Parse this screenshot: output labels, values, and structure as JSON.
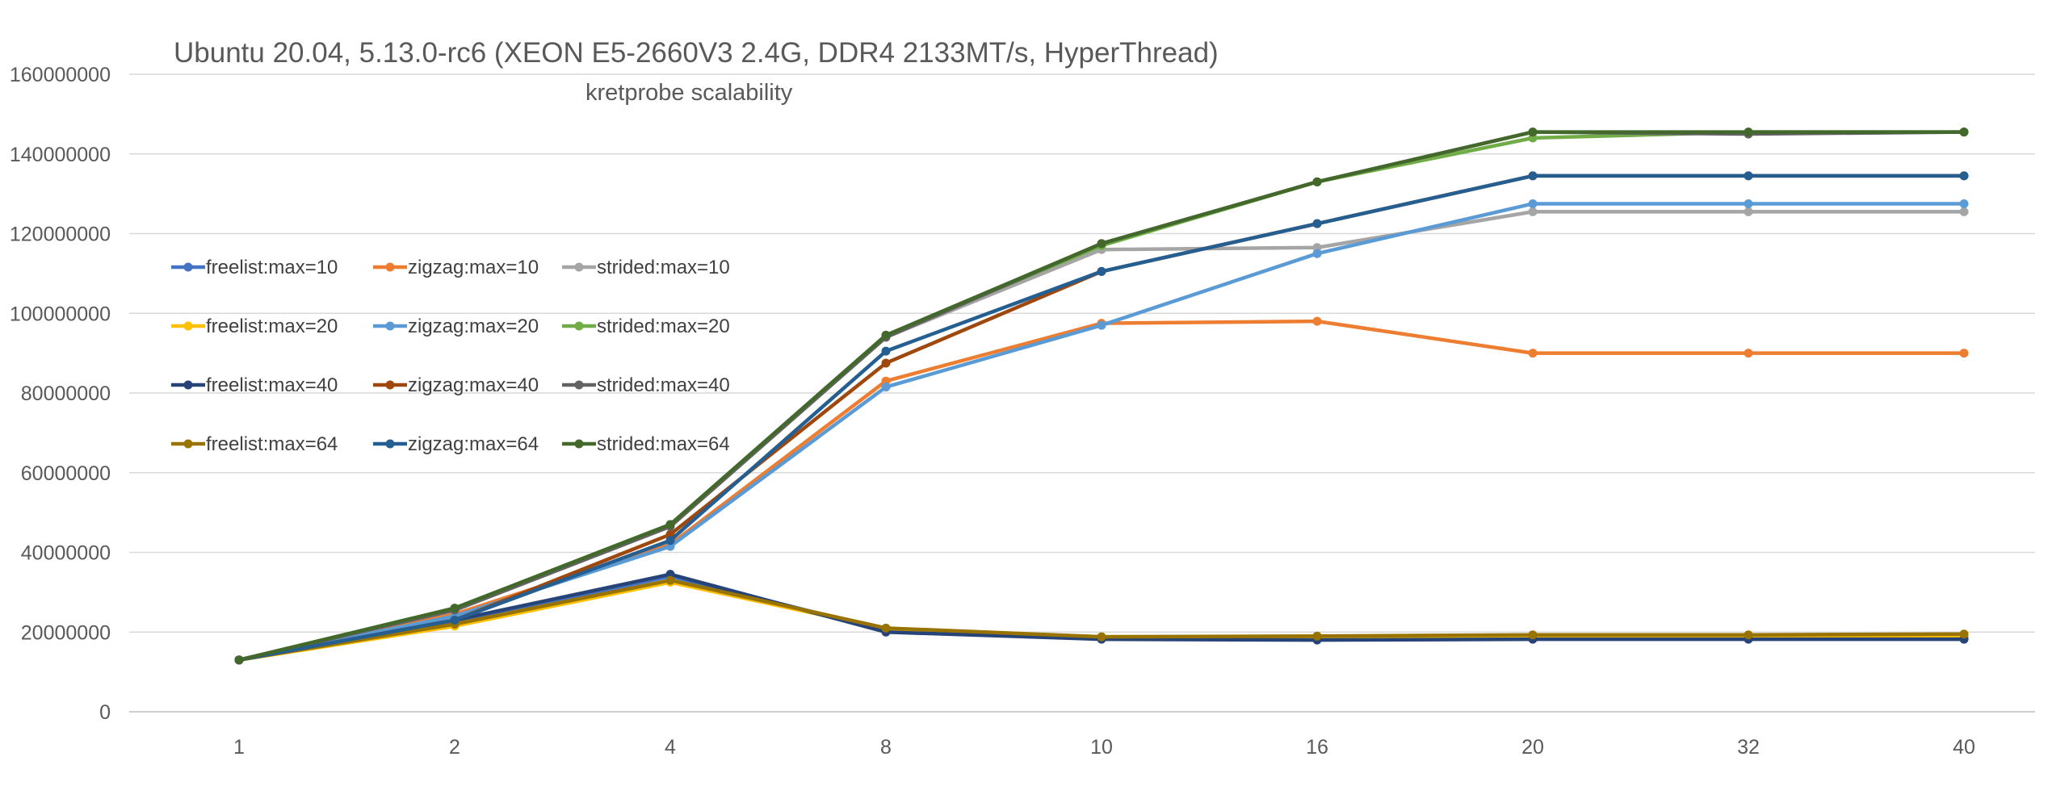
{
  "chart_data": {
    "type": "line",
    "title": "Ubuntu 20.04, 5.13.0-rc6 (XEON E5-2660V3 2.4G, DDR4 2133MT/s, HyperThread)",
    "subtitle": "kretprobe scalability",
    "xlabel": "",
    "ylabel": "",
    "x": [
      "1",
      "2",
      "4",
      "8",
      "10",
      "16",
      "20",
      "32",
      "40"
    ],
    "ylim": [
      0,
      160000000
    ],
    "yticks": [
      "0",
      "20000000",
      "40000000",
      "60000000",
      "80000000",
      "100000000",
      "120000000",
      "140000000",
      "160000000"
    ],
    "grid": true,
    "legend_position": "left",
    "series": [
      {
        "name": "freelist:max=10",
        "color": "#4472C4",
        "values": [
          13000000,
          22500000,
          34000000,
          20500000,
          18500000,
          18200000,
          18500000,
          18500000,
          18500000
        ]
      },
      {
        "name": "zigzag:max=10",
        "color": "#ED7D31",
        "values": [
          13000000,
          24500000,
          42000000,
          83000000,
          97500000,
          98000000,
          90000000,
          90000000,
          90000000
        ]
      },
      {
        "name": "strided:max=10",
        "color": "#A5A5A5",
        "values": [
          13000000,
          25500000,
          46500000,
          94000000,
          116000000,
          116500000,
          125500000,
          125500000,
          125500000
        ]
      },
      {
        "name": "freelist:max=20",
        "color": "#FFC000",
        "values": [
          13000000,
          21500000,
          32500000,
          20800000,
          18800000,
          18800000,
          19000000,
          19000000,
          19000000
        ]
      },
      {
        "name": "zigzag:max=20",
        "color": "#5B9BD5",
        "values": [
          13000000,
          24000000,
          41500000,
          81500000,
          97000000,
          115000000,
          127500000,
          127500000,
          127500000
        ]
      },
      {
        "name": "strided:max=20",
        "color": "#70AD47",
        "values": [
          13000000,
          26000000,
          47000000,
          94500000,
          117000000,
          133000000,
          144000000,
          145500000,
          145500000
        ]
      },
      {
        "name": "freelist:max=40",
        "color": "#264478",
        "values": [
          13000000,
          23000000,
          34500000,
          20000000,
          18200000,
          18000000,
          18200000,
          18200000,
          18200000
        ]
      },
      {
        "name": "zigzag:max=40",
        "color": "#9E480E",
        "values": [
          13000000,
          23000000,
          44500000,
          87500000,
          110500000,
          122500000,
          134500000,
          134500000,
          134500000
        ]
      },
      {
        "name": "strided:max=40",
        "color": "#636363",
        "values": [
          13000000,
          25500000,
          46500000,
          94000000,
          117500000,
          133000000,
          145500000,
          145000000,
          145500000
        ]
      },
      {
        "name": "freelist:max=64",
        "color": "#997300",
        "values": [
          13000000,
          22000000,
          33000000,
          21000000,
          18800000,
          19000000,
          19300000,
          19300000,
          19500000
        ]
      },
      {
        "name": "zigzag:max=64",
        "color": "#255E91",
        "values": [
          13000000,
          23000000,
          43000000,
          90500000,
          110500000,
          122500000,
          134500000,
          134500000,
          134500000
        ]
      },
      {
        "name": "strided:max=64",
        "color": "#43682B",
        "values": [
          13000000,
          26000000,
          47000000,
          94500000,
          117500000,
          133000000,
          145500000,
          145500000,
          145500000
        ]
      }
    ]
  }
}
